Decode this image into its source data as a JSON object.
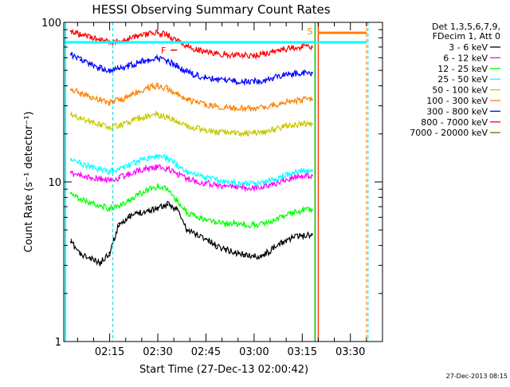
{
  "chart_data": {
    "type": "line",
    "title": "HESSI Observing Summary Count Rates",
    "xlabel": "Start Time (27-Dec-13 02:00:42)",
    "ylabel": "Count Rate (s⁻¹ detector⁻¹)",
    "y_scale": "log",
    "ylim": [
      1,
      100
    ],
    "xlim": [
      "02:00:42",
      "03:40:00"
    ],
    "x_ticks": [
      "02:15",
      "02:30",
      "02:45",
      "03:00",
      "03:15",
      "03:30"
    ],
    "y_ticks": [
      "1",
      "10",
      "100"
    ],
    "grid": false,
    "legend_position": "right",
    "legend_header": [
      "Det 1,3,5,6,7,9,",
      "FDecim 1, Att 0"
    ],
    "timestamp": "27-Dec-2013 08:15",
    "annotations": [
      "S",
      "F"
    ],
    "series": [
      {
        "name": "3 - 6 keV",
        "color": "#000000",
        "x": [
          "02:03",
          "02:06",
          "02:09",
          "02:12",
          "02:15",
          "02:18",
          "02:21",
          "02:24",
          "02:27",
          "02:30",
          "02:33",
          "02:36",
          "02:39",
          "02:42",
          "02:45",
          "02:48",
          "02:51",
          "02:54",
          "02:57",
          "03:00",
          "03:03",
          "03:06",
          "03:09",
          "03:12",
          "03:15",
          "03:18"
        ],
        "y": [
          4.2,
          3.5,
          3.3,
          3.1,
          3.6,
          5.5,
          6.0,
          6.4,
          6.6,
          6.9,
          7.2,
          6.8,
          5.0,
          4.7,
          4.4,
          4.0,
          3.8,
          3.6,
          3.5,
          3.4,
          3.5,
          3.8,
          4.2,
          4.5,
          4.6,
          4.7
        ]
      },
      {
        "name": "6 - 12 keV",
        "color": "#ff00ff",
        "x": [
          "02:03",
          "02:06",
          "02:09",
          "02:12",
          "02:15",
          "02:18",
          "02:21",
          "02:24",
          "02:27",
          "02:30",
          "02:33",
          "02:36",
          "02:39",
          "02:42",
          "02:45",
          "02:48",
          "02:51",
          "02:54",
          "02:57",
          "03:00",
          "03:03",
          "03:06",
          "03:09",
          "03:12",
          "03:15",
          "03:18"
        ],
        "y": [
          11.5,
          11.0,
          10.6,
          10.4,
          10.2,
          10.6,
          11.2,
          11.8,
          12.2,
          12.4,
          12.1,
          11.3,
          10.5,
          10.1,
          9.8,
          9.6,
          9.4,
          9.3,
          9.2,
          9.2,
          9.3,
          9.7,
          10.2,
          10.6,
          10.9,
          11.0
        ]
      },
      {
        "name": "12 - 25 keV",
        "color": "#00ff00",
        "x": [
          "02:03",
          "02:06",
          "02:09",
          "02:12",
          "02:15",
          "02:18",
          "02:21",
          "02:24",
          "02:27",
          "02:30",
          "02:33",
          "02:36",
          "02:39",
          "02:42",
          "02:45",
          "02:48",
          "02:51",
          "02:54",
          "02:57",
          "03:00",
          "03:03",
          "03:06",
          "03:09",
          "03:12",
          "03:15",
          "03:18"
        ],
        "y": [
          8.5,
          7.8,
          7.4,
          7.1,
          6.8,
          7.0,
          7.6,
          8.4,
          8.9,
          9.3,
          9.0,
          7.6,
          6.4,
          6.0,
          5.8,
          5.6,
          5.5,
          5.5,
          5.4,
          5.4,
          5.5,
          5.8,
          6.1,
          6.4,
          6.6,
          6.7
        ]
      },
      {
        "name": "25 - 50 keV",
        "color": "#00ffff",
        "x": [
          "02:03",
          "02:06",
          "02:09",
          "02:12",
          "02:15",
          "02:18",
          "02:21",
          "02:24",
          "02:27",
          "02:30",
          "02:33",
          "02:36",
          "02:39",
          "02:42",
          "02:45",
          "02:48",
          "02:51",
          "02:54",
          "02:57",
          "03:00",
          "03:03",
          "03:06",
          "03:09",
          "03:12",
          "03:15",
          "03:18"
        ],
        "y": [
          13.8,
          13.0,
          12.4,
          12.0,
          11.6,
          12.0,
          12.7,
          13.5,
          14.2,
          14.5,
          14.0,
          12.8,
          11.6,
          11.0,
          10.6,
          10.3,
          10.1,
          9.9,
          9.8,
          9.8,
          9.9,
          10.3,
          10.9,
          11.4,
          11.7,
          11.8
        ]
      },
      {
        "name": "50 - 100 keV",
        "color": "#c8c800",
        "x": [
          "02:03",
          "02:06",
          "02:09",
          "02:12",
          "02:15",
          "02:18",
          "02:21",
          "02:24",
          "02:27",
          "02:30",
          "02:33",
          "02:36",
          "02:39",
          "02:42",
          "02:45",
          "02:48",
          "02:51",
          "02:54",
          "02:57",
          "03:00",
          "03:03",
          "03:06",
          "03:09",
          "03:12",
          "03:15",
          "03:18"
        ],
        "y": [
          26.5,
          25.0,
          23.8,
          22.8,
          22.0,
          22.6,
          23.6,
          25.0,
          26.0,
          26.4,
          25.6,
          23.8,
          22.4,
          21.6,
          21.0,
          20.6,
          20.4,
          20.2,
          20.2,
          20.3,
          20.5,
          21.2,
          22.0,
          22.6,
          23.0,
          23.2
        ]
      },
      {
        "name": "100 - 300 keV",
        "color": "#ff8000",
        "x": [
          "02:03",
          "02:06",
          "02:09",
          "02:12",
          "02:15",
          "02:18",
          "02:21",
          "02:24",
          "02:27",
          "02:30",
          "02:33",
          "02:36",
          "02:39",
          "02:42",
          "02:45",
          "02:48",
          "02:51",
          "02:54",
          "02:57",
          "03:00",
          "03:03",
          "03:06",
          "03:09",
          "03:12",
          "03:15",
          "03:18"
        ],
        "y": [
          38,
          36,
          34,
          32.5,
          31.5,
          32.5,
          34.5,
          37,
          39,
          40,
          38.5,
          35.5,
          33,
          31.5,
          30.5,
          29.8,
          29.3,
          29,
          28.9,
          29,
          29.4,
          30.3,
          31.3,
          32.2,
          32.6,
          32.8
        ]
      },
      {
        "name": "300 - 800 keV",
        "color": "#0000ff",
        "x": [
          "02:03",
          "02:06",
          "02:09",
          "02:12",
          "02:15",
          "02:18",
          "02:21",
          "02:24",
          "02:27",
          "02:30",
          "02:33",
          "02:36",
          "02:39",
          "02:42",
          "02:45",
          "02:48",
          "02:51",
          "02:54",
          "02:57",
          "03:00",
          "03:03",
          "03:06",
          "03:09",
          "03:12",
          "03:15",
          "03:18"
        ],
        "y": [
          63,
          58,
          55,
          52,
          50,
          51,
          53.5,
          56,
          58.5,
          59.5,
          57.5,
          53,
          49,
          46.5,
          45,
          44,
          43.2,
          42.6,
          42.4,
          42.6,
          43.3,
          44.8,
          46.4,
          47.6,
          48.2,
          48.4
        ]
      },
      {
        "name": "800 - 7000 keV",
        "color": "#ff0000",
        "x": [
          "02:03",
          "02:06",
          "02:09",
          "02:12",
          "02:15",
          "02:18",
          "02:21",
          "02:24",
          "02:27",
          "02:30",
          "02:33",
          "02:36",
          "02:39",
          "02:42",
          "02:45",
          "02:48",
          "02:51",
          "02:54",
          "02:57",
          "03:00",
          "03:03",
          "03:06",
          "03:09",
          "03:12",
          "03:15",
          "03:18"
        ],
        "y": [
          88,
          83,
          80,
          77,
          75,
          76,
          79,
          82,
          85,
          86,
          83,
          77,
          71,
          67.5,
          65.5,
          64,
          63,
          62.3,
          62,
          62.3,
          63.3,
          65.5,
          67.6,
          69.2,
          70,
          70.3
        ]
      },
      {
        "name": "7000 - 20000 keV",
        "color": "#806600",
        "x": [],
        "y": []
      }
    ]
  }
}
